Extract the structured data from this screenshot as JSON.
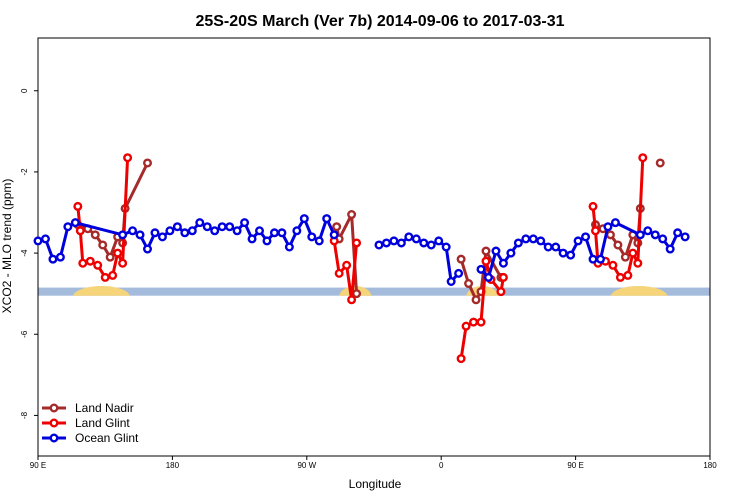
{
  "chart_data": {
    "type": "line",
    "title": "25S-20S March (Ver 7b)   2014-09-06 to 2017-03-31",
    "xlabel": "Longitude",
    "ylabel": "XCO2 - MLO trend (ppm)",
    "xlim": [
      -90,
      180
    ],
    "ylim": [
      -9,
      1.3
    ],
    "xticks": [
      {
        "value": -90,
        "label": "90 E"
      },
      {
        "value": -36,
        "label": "180"
      },
      {
        "value": 18,
        "label": "90 W"
      },
      {
        "value": 72,
        "label": "0"
      },
      {
        "value": 126,
        "label": "90 E"
      },
      {
        "value": 180,
        "label": "180"
      }
    ],
    "yticks": [
      {
        "value": 0,
        "label": "0"
      },
      {
        "value": -2,
        "label": "-2"
      },
      {
        "value": -4,
        "label": "-4"
      },
      {
        "value": -6,
        "label": "-6"
      },
      {
        "value": -8,
        "label": "-8"
      }
    ],
    "grid": false,
    "legend_position": "bottom-left",
    "land_band": {
      "y_top": -4.85,
      "y_bottom": -5.05,
      "ocean_color": "#a4bbdb",
      "land_color": "#f5d47a"
    },
    "land_segments": [
      [
        -76,
        -53
      ],
      [
        31,
        44
      ],
      [
        82,
        95
      ],
      [
        140,
        163
      ]
    ],
    "series": [
      {
        "name": "Land Nadir",
        "color": "#a52a2a",
        "segments": [
          [
            [
              -74,
              -3.3
            ],
            [
              -70,
              -3.4
            ],
            [
              -67,
              -3.55
            ],
            [
              -64,
              -3.8
            ],
            [
              -61,
              -4.1
            ],
            [
              -58,
              -3.6
            ],
            [
              -56,
              -3.75
            ],
            [
              -55,
              -2.9
            ],
            [
              -46,
              -1.78
            ]
          ],
          [
            [
              30,
              -3.35
            ],
            [
              31,
              -3.65
            ],
            [
              36,
              -3.05
            ],
            [
              38,
              -5.0
            ]
          ],
          [
            [
              80,
              -4.15
            ],
            [
              83,
              -4.75
            ],
            [
              86,
              -5.15
            ],
            [
              88,
              -4.95
            ],
            [
              90,
              -3.95
            ],
            [
              96,
              -4.6
            ]
          ],
          [
            [
              134,
              -3.3
            ],
            [
              137,
              -3.4
            ],
            [
              140,
              -3.55
            ],
            [
              143,
              -3.8
            ],
            [
              146,
              -4.1
            ],
            [
              149,
              -3.55
            ],
            [
              151,
              -3.75
            ],
            [
              152,
              -2.9
            ]
          ],
          [
            [
              160,
              -1.78
            ]
          ]
        ]
      },
      {
        "name": "Land Glint",
        "color": "#ee0000",
        "segments": [
          [
            [
              -74,
              -2.85
            ],
            [
              -73,
              -3.45
            ],
            [
              -72,
              -4.25
            ],
            [
              -69,
              -4.2
            ],
            [
              -66,
              -4.3
            ],
            [
              -63,
              -4.6
            ],
            [
              -60,
              -4.55
            ],
            [
              -58,
              -4.0
            ],
            [
              -56,
              -4.25
            ],
            [
              -54,
              -1.65
            ]
          ],
          [
            [
              29,
              -3.7
            ],
            [
              31,
              -4.5
            ],
            [
              34,
              -4.3
            ],
            [
              36,
              -5.15
            ],
            [
              38,
              -3.75
            ]
          ],
          [
            [
              80,
              -6.6
            ],
            [
              82,
              -5.8
            ],
            [
              85,
              -5.7
            ],
            [
              88,
              -5.7
            ],
            [
              90,
              -4.2
            ],
            [
              92,
              -4.65
            ],
            [
              96,
              -4.95
            ],
            [
              97,
              -4.6
            ]
          ],
          [
            [
              133,
              -2.85
            ],
            [
              134,
              -3.45
            ],
            [
              135,
              -4.25
            ],
            [
              138,
              -4.2
            ],
            [
              141,
              -4.3
            ],
            [
              144,
              -4.6
            ],
            [
              147,
              -4.55
            ],
            [
              149,
              -4.0
            ],
            [
              151,
              -4.25
            ],
            [
              153,
              -1.65
            ]
          ]
        ]
      },
      {
        "name": "Ocean Glint",
        "color": "#0000dd",
        "segments": [
          [
            [
              -90,
              -3.7
            ],
            [
              -87,
              -3.65
            ],
            [
              -84,
              -4.15
            ],
            [
              -81,
              -4.1
            ],
            [
              -78,
              -3.35
            ],
            [
              -75,
              -3.25
            ],
            [
              -56,
              -3.55
            ],
            [
              -52,
              -3.45
            ],
            [
              -49,
              -3.55
            ],
            [
              -46,
              -3.9
            ],
            [
              -43,
              -3.5
            ],
            [
              -40,
              -3.6
            ],
            [
              -37,
              -3.45
            ],
            [
              -34,
              -3.35
            ],
            [
              -31,
              -3.5
            ],
            [
              -28,
              -3.45
            ],
            [
              -25,
              -3.25
            ],
            [
              -22,
              -3.35
            ],
            [
              -19,
              -3.45
            ],
            [
              -16,
              -3.35
            ],
            [
              -13,
              -3.35
            ],
            [
              -10,
              -3.45
            ],
            [
              -7,
              -3.25
            ],
            [
              -4,
              -3.65
            ],
            [
              -1,
              -3.45
            ],
            [
              2,
              -3.7
            ],
            [
              5,
              -3.5
            ],
            [
              8,
              -3.5
            ],
            [
              11,
              -3.85
            ],
            [
              14,
              -3.45
            ],
            [
              17,
              -3.15
            ],
            [
              20,
              -3.6
            ],
            [
              23,
              -3.7
            ],
            [
              26,
              -3.15
            ],
            [
              29,
              -3.55
            ]
          ],
          [
            [
              47,
              -3.8
            ],
            [
              50,
              -3.75
            ],
            [
              53,
              -3.7
            ],
            [
              56,
              -3.75
            ],
            [
              59,
              -3.6
            ],
            [
              62,
              -3.65
            ],
            [
              65,
              -3.75
            ],
            [
              68,
              -3.8
            ],
            [
              71,
              -3.7
            ],
            [
              74,
              -3.85
            ],
            [
              76,
              -4.7
            ],
            [
              79,
              -4.5
            ]
          ],
          [
            [
              88,
              -4.4
            ],
            [
              91,
              -4.6
            ],
            [
              94,
              -3.95
            ],
            [
              97,
              -4.25
            ],
            [
              100,
              -4.0
            ],
            [
              103,
              -3.75
            ],
            [
              106,
              -3.65
            ],
            [
              109,
              -3.65
            ],
            [
              112,
              -3.7
            ],
            [
              115,
              -3.85
            ],
            [
              118,
              -3.85
            ],
            [
              121,
              -4.0
            ],
            [
              124,
              -4.05
            ],
            [
              127,
              -3.7
            ],
            [
              130,
              -3.6
            ],
            [
              133,
              -4.15
            ],
            [
              136,
              -4.15
            ],
            [
              139,
              -3.35
            ],
            [
              142,
              -3.25
            ],
            [
              152,
              -3.55
            ],
            [
              155,
              -3.45
            ],
            [
              158,
              -3.55
            ],
            [
              161,
              -3.65
            ],
            [
              164,
              -3.9
            ],
            [
              167,
              -3.5
            ],
            [
              170,
              -3.6
            ]
          ]
        ]
      }
    ]
  }
}
